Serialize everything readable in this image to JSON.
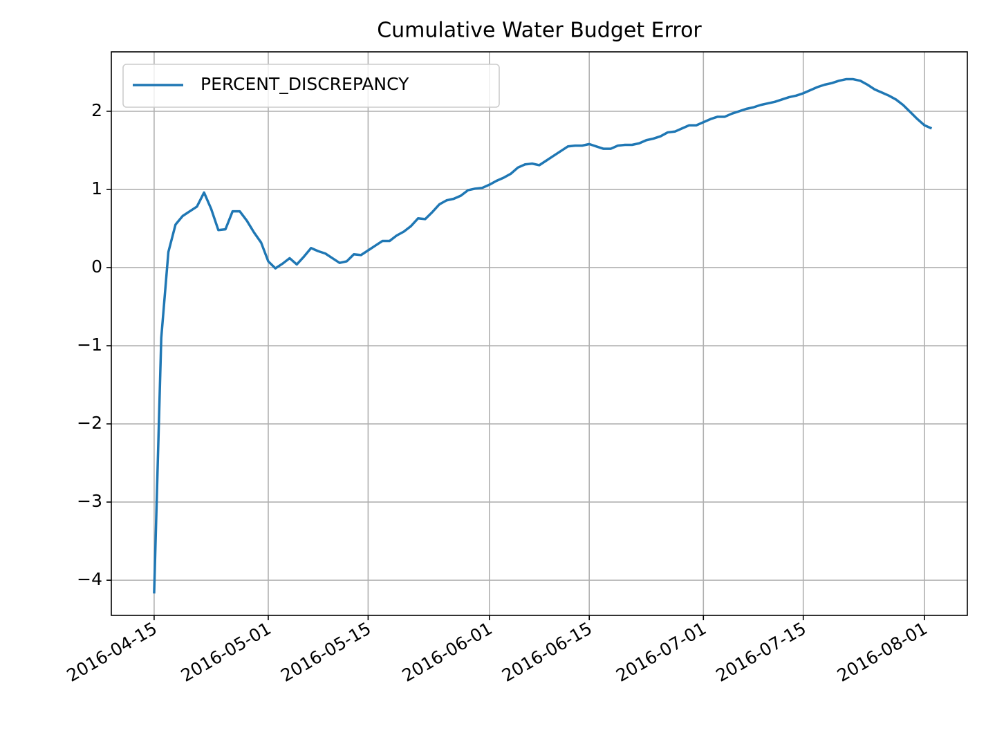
{
  "chart_data": {
    "type": "line",
    "title": "Cumulative Water Budget Error",
    "x": [
      "2016-04-15",
      "2016-04-16",
      "2016-04-17",
      "2016-04-18",
      "2016-04-19",
      "2016-04-20",
      "2016-04-21",
      "2016-04-22",
      "2016-04-23",
      "2016-04-24",
      "2016-04-25",
      "2016-04-26",
      "2016-04-27",
      "2016-04-28",
      "2016-04-29",
      "2016-04-30",
      "2016-05-01",
      "2016-05-02",
      "2016-05-03",
      "2016-05-04",
      "2016-05-05",
      "2016-05-06",
      "2016-05-07",
      "2016-05-08",
      "2016-05-09",
      "2016-05-10",
      "2016-05-11",
      "2016-05-12",
      "2016-05-13",
      "2016-05-14",
      "2016-05-15",
      "2016-05-16",
      "2016-05-17",
      "2016-05-18",
      "2016-05-19",
      "2016-05-20",
      "2016-05-21",
      "2016-05-22",
      "2016-05-23",
      "2016-05-24",
      "2016-05-25",
      "2016-05-26",
      "2016-05-27",
      "2016-05-28",
      "2016-05-29",
      "2016-05-30",
      "2016-05-31",
      "2016-06-01",
      "2016-06-02",
      "2016-06-03",
      "2016-06-04",
      "2016-06-05",
      "2016-06-06",
      "2016-06-07",
      "2016-06-08",
      "2016-06-09",
      "2016-06-10",
      "2016-06-11",
      "2016-06-12",
      "2016-06-13",
      "2016-06-14",
      "2016-06-15",
      "2016-06-16",
      "2016-06-17",
      "2016-06-18",
      "2016-06-19",
      "2016-06-20",
      "2016-06-21",
      "2016-06-22",
      "2016-06-23",
      "2016-06-24",
      "2016-06-25",
      "2016-06-26",
      "2016-06-27",
      "2016-06-28",
      "2016-06-29",
      "2016-06-30",
      "2016-07-01",
      "2016-07-02",
      "2016-07-03",
      "2016-07-04",
      "2016-07-05",
      "2016-07-06",
      "2016-07-07",
      "2016-07-08",
      "2016-07-09",
      "2016-07-10",
      "2016-07-11",
      "2016-07-12",
      "2016-07-13",
      "2016-07-14",
      "2016-07-15",
      "2016-07-16",
      "2016-07-17",
      "2016-07-18",
      "2016-07-19",
      "2016-07-20",
      "2016-07-21",
      "2016-07-22",
      "2016-07-23",
      "2016-07-24",
      "2016-07-25",
      "2016-07-26",
      "2016-07-27",
      "2016-07-28",
      "2016-07-29",
      "2016-07-30",
      "2016-07-31",
      "2016-08-01",
      "2016-08-02"
    ],
    "series": [
      {
        "name": "PERCENT_DISCREPANCY",
        "color": "#1f77b4",
        "values": [
          -4.17,
          -0.9,
          0.2,
          0.55,
          0.66,
          0.72,
          0.78,
          0.96,
          0.75,
          0.48,
          0.49,
          0.72,
          0.72,
          0.6,
          0.45,
          0.32,
          0.08,
          -0.01,
          0.05,
          0.12,
          0.04,
          0.14,
          0.25,
          0.21,
          0.18,
          0.12,
          0.06,
          0.08,
          0.17,
          0.16,
          0.22,
          0.28,
          0.34,
          0.34,
          0.41,
          0.46,
          0.53,
          0.63,
          0.62,
          0.71,
          0.81,
          0.86,
          0.88,
          0.92,
          0.99,
          1.01,
          1.02,
          1.06,
          1.11,
          1.15,
          1.2,
          1.28,
          1.32,
          1.33,
          1.31,
          1.37,
          1.43,
          1.49,
          1.55,
          1.56,
          1.56,
          1.58,
          1.55,
          1.52,
          1.52,
          1.56,
          1.57,
          1.57,
          1.59,
          1.63,
          1.65,
          1.68,
          1.73,
          1.74,
          1.78,
          1.82,
          1.82,
          1.86,
          1.9,
          1.93,
          1.93,
          1.97,
          2.0,
          2.03,
          2.05,
          2.08,
          2.1,
          2.12,
          2.15,
          2.18,
          2.2,
          2.23,
          2.27,
          2.31,
          2.34,
          2.36,
          2.39,
          2.41,
          2.41,
          2.39,
          2.34,
          2.28,
          2.24,
          2.2,
          2.15,
          2.08,
          1.99,
          1.9,
          1.82,
          1.78
        ]
      }
    ],
    "xlim": [
      "2016-04-09",
      "2016-08-07"
    ],
    "xticks": [
      "2016-04-15",
      "2016-05-01",
      "2016-05-15",
      "2016-06-01",
      "2016-06-15",
      "2016-07-01",
      "2016-07-15",
      "2016-08-01"
    ],
    "ylim": [
      -4.45,
      2.76
    ],
    "yticks": [
      {
        "value": -4,
        "label": "−4"
      },
      {
        "value": -3,
        "label": "−3"
      },
      {
        "value": -2,
        "label": "−2"
      },
      {
        "value": -1,
        "label": "−1"
      },
      0,
      1,
      2
    ],
    "grid": true,
    "legend": "upper left"
  }
}
